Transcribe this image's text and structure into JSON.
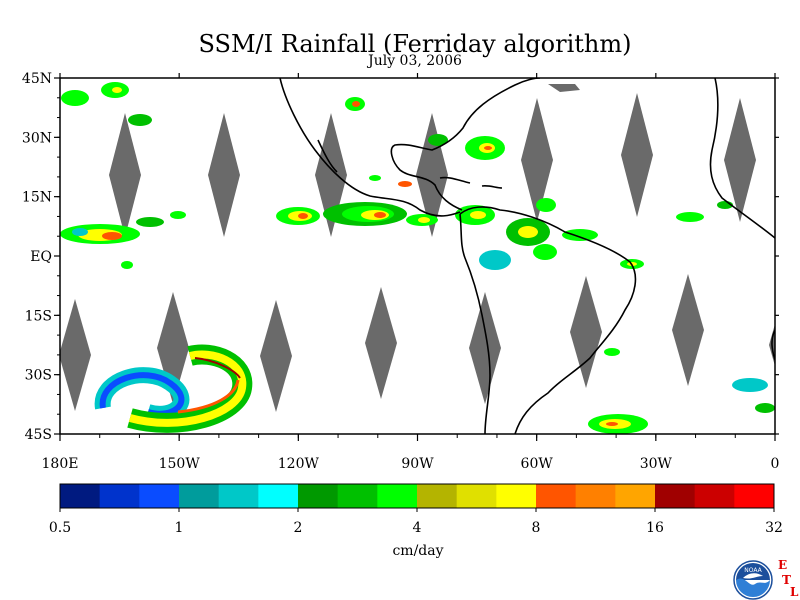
{
  "header": {
    "title": "SSM/I Rainfall (Ferriday algorithm)",
    "date": "July 03, 2006"
  },
  "map": {
    "lon_range": [
      -180,
      0
    ],
    "lat_range": [
      -45,
      45
    ],
    "lat_ticks": [
      {
        "value": 45,
        "label": "45N"
      },
      {
        "value": 30,
        "label": "30N"
      },
      {
        "value": 15,
        "label": "15N"
      },
      {
        "value": 0,
        "label": "EQ"
      },
      {
        "value": -15,
        "label": "15S"
      },
      {
        "value": -30,
        "label": "30S"
      },
      {
        "value": -45,
        "label": "45S"
      }
    ],
    "lon_ticks": [
      {
        "value": -180,
        "label": "180E"
      },
      {
        "value": -150,
        "label": "150W"
      },
      {
        "value": -120,
        "label": "120W"
      },
      {
        "value": -90,
        "label": "90W"
      },
      {
        "value": -60,
        "label": "60W"
      },
      {
        "value": -30,
        "label": "30W"
      },
      {
        "value": 0,
        "label": "0"
      }
    ],
    "no_data_color": "#6a6a6a",
    "coastline_color": "#000000"
  },
  "colorbar": {
    "unit_label": "cm/day",
    "colors": [
      "#001a80",
      "#0033cc",
      "#0a4cff",
      "#009c9c",
      "#00c8c8",
      "#00ffff",
      "#009900",
      "#00c000",
      "#00ff00",
      "#b4b400",
      "#e0e000",
      "#ffff00",
      "#ff5500",
      "#ff8000",
      "#ffa500",
      "#a00000",
      "#cc0000",
      "#ff0000"
    ],
    "tick_labels": [
      "0.5",
      "1",
      "2",
      "4",
      "8",
      "16",
      "32"
    ]
  },
  "logo": {
    "text": "NOAA",
    "letters": [
      "E",
      "T",
      "L"
    ]
  }
}
